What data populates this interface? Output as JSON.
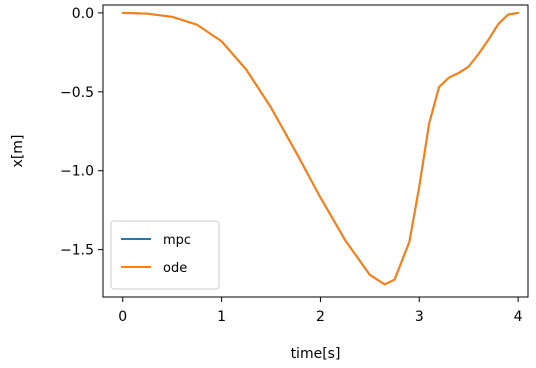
{
  "chart_data": {
    "type": "line",
    "title": "",
    "xlabel": "time[s]",
    "ylabel": "x[m]",
    "xlim": [
      -0.2,
      4.1
    ],
    "ylim": [
      -1.8,
      0.05
    ],
    "x_ticks": [
      0,
      1,
      2,
      3,
      4
    ],
    "x_tick_labels": [
      "0",
      "1",
      "2",
      "3",
      "4"
    ],
    "y_ticks": [
      0.0,
      -0.5,
      -1.0,
      -1.5
    ],
    "y_tick_labels": [
      "0.0",
      "−0.5",
      "−1.0",
      "−1.5"
    ],
    "grid": false,
    "legend_position": "lower-left",
    "x": [
      0.0,
      0.25,
      0.5,
      0.75,
      1.0,
      1.25,
      1.5,
      1.75,
      2.0,
      2.25,
      2.5,
      2.65,
      2.75,
      2.9,
      3.0,
      3.1,
      3.2,
      3.3,
      3.4,
      3.5,
      3.6,
      3.7,
      3.8,
      3.9,
      4.0
    ],
    "series": [
      {
        "name": "mpc",
        "color": "#1f77b4",
        "values": [
          0.0,
          -0.005,
          -0.025,
          -0.075,
          -0.18,
          -0.36,
          -0.6,
          -0.88,
          -1.17,
          -1.44,
          -1.66,
          -1.72,
          -1.69,
          -1.45,
          -1.1,
          -0.7,
          -0.47,
          -0.41,
          -0.38,
          -0.34,
          -0.26,
          -0.17,
          -0.07,
          -0.01,
          0.0
        ]
      },
      {
        "name": "ode",
        "color": "#ff7f0e",
        "values": [
          0.0,
          -0.005,
          -0.025,
          -0.075,
          -0.18,
          -0.36,
          -0.6,
          -0.88,
          -1.17,
          -1.44,
          -1.66,
          -1.72,
          -1.69,
          -1.45,
          -1.1,
          -0.7,
          -0.47,
          -0.41,
          -0.38,
          -0.34,
          -0.26,
          -0.17,
          -0.07,
          -0.01,
          0.0
        ]
      }
    ]
  }
}
